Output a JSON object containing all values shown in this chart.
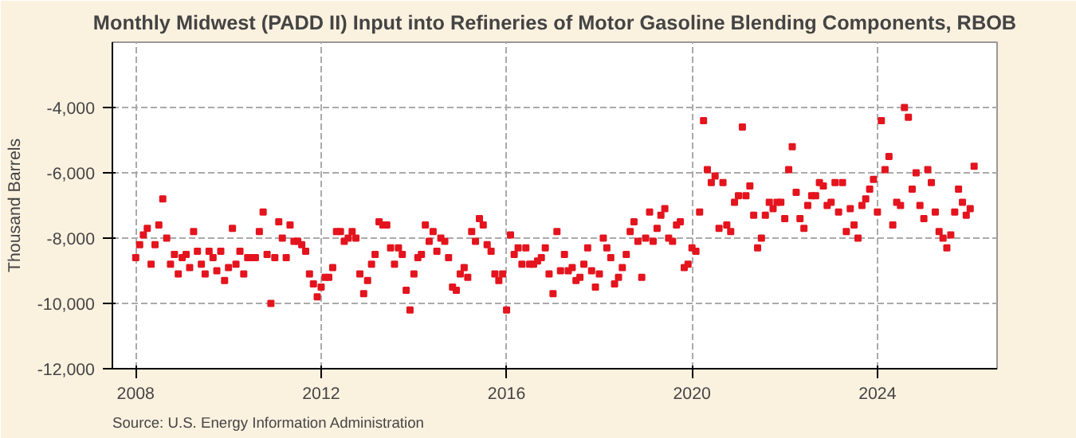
{
  "chart_data": {
    "type": "scatter",
    "title": "Monthly Midwest (PADD II) Input into Refineries of Motor Gasoline Blending Components, RBOB",
    "ylabel": "Thousand Barrels",
    "annotations": [
      "Source: U.S. Energy Information Administration"
    ],
    "marker": "square",
    "grid": true,
    "xlim": [
      "2007-07",
      "2026-08"
    ],
    "xticks": [
      "2008",
      "2012",
      "2016",
      "2020",
      "2024"
    ],
    "ylim": [
      -12000,
      -2000
    ],
    "yticks": [
      {
        "value": -12000,
        "label": "-12,000"
      },
      {
        "value": -10000,
        "label": "-10,000"
      },
      {
        "value": -8000,
        "label": "-8,000"
      },
      {
        "value": -6000,
        "label": "-6,000"
      },
      {
        "value": -4000,
        "label": "-4,000"
      }
    ],
    "x": [
      "2008-01",
      "2008-02",
      "2008-03",
      "2008-04",
      "2008-05",
      "2008-06",
      "2008-07",
      "2008-08",
      "2008-09",
      "2008-10",
      "2008-11",
      "2008-12",
      "2009-01",
      "2009-02",
      "2009-03",
      "2009-04",
      "2009-05",
      "2009-06",
      "2009-07",
      "2009-08",
      "2009-09",
      "2009-10",
      "2009-11",
      "2009-12",
      "2010-01",
      "2010-02",
      "2010-03",
      "2010-04",
      "2010-05",
      "2010-06",
      "2010-07",
      "2010-08",
      "2010-09",
      "2010-10",
      "2010-11",
      "2010-12",
      "2011-01",
      "2011-02",
      "2011-03",
      "2011-04",
      "2011-05",
      "2011-06",
      "2011-07",
      "2011-08",
      "2011-09",
      "2011-10",
      "2011-11",
      "2011-12",
      "2012-01",
      "2012-02",
      "2012-03",
      "2012-04",
      "2012-05",
      "2012-06",
      "2012-07",
      "2012-08",
      "2012-09",
      "2012-10",
      "2012-11",
      "2012-12",
      "2013-01",
      "2013-02",
      "2013-03",
      "2013-04",
      "2013-05",
      "2013-06",
      "2013-07",
      "2013-08",
      "2013-09",
      "2013-10",
      "2013-11",
      "2013-12",
      "2014-01",
      "2014-02",
      "2014-03",
      "2014-04",
      "2014-05",
      "2014-06",
      "2014-07",
      "2014-08",
      "2014-09",
      "2014-10",
      "2014-11",
      "2014-12",
      "2015-01",
      "2015-02",
      "2015-03",
      "2015-04",
      "2015-05",
      "2015-06",
      "2015-07",
      "2015-08",
      "2015-09",
      "2015-10",
      "2015-11",
      "2015-12",
      "2016-01",
      "2016-02",
      "2016-03",
      "2016-04",
      "2016-05",
      "2016-06",
      "2016-07",
      "2016-08",
      "2016-09",
      "2016-10",
      "2016-11",
      "2016-12",
      "2017-01",
      "2017-02",
      "2017-03",
      "2017-04",
      "2017-05",
      "2017-06",
      "2017-07",
      "2017-08",
      "2017-09",
      "2017-10",
      "2017-11",
      "2017-12",
      "2018-01",
      "2018-02",
      "2018-03",
      "2018-04",
      "2018-05",
      "2018-06",
      "2018-07",
      "2018-08",
      "2018-09",
      "2018-10",
      "2018-11",
      "2018-12",
      "2019-01",
      "2019-02",
      "2019-03",
      "2019-04",
      "2019-05",
      "2019-06",
      "2019-07",
      "2019-08",
      "2019-09",
      "2019-10",
      "2019-11",
      "2019-12",
      "2020-01",
      "2020-02",
      "2020-03",
      "2020-04",
      "2020-05",
      "2020-06",
      "2020-07",
      "2020-08",
      "2020-09",
      "2020-10",
      "2020-11",
      "2020-12",
      "2021-01",
      "2021-02",
      "2021-03",
      "2021-04",
      "2021-05",
      "2021-06",
      "2021-07",
      "2021-08",
      "2021-09",
      "2021-10",
      "2021-11",
      "2021-12",
      "2022-01",
      "2022-02",
      "2022-03",
      "2022-04",
      "2022-05",
      "2022-06",
      "2022-07",
      "2022-08",
      "2022-09",
      "2022-10",
      "2022-11",
      "2022-12",
      "2023-01",
      "2023-02",
      "2023-03",
      "2023-04",
      "2023-05",
      "2023-06",
      "2023-07",
      "2023-08",
      "2023-09",
      "2023-10",
      "2023-11",
      "2023-12",
      "2024-01",
      "2024-02",
      "2024-03",
      "2024-04",
      "2024-05",
      "2024-06",
      "2024-07",
      "2024-08",
      "2024-09",
      "2024-10",
      "2024-11",
      "2024-12",
      "2025-01",
      "2025-02",
      "2025-03",
      "2025-04",
      "2025-05",
      "2025-06",
      "2025-07",
      "2025-08",
      "2025-09",
      "2025-10",
      "2025-11",
      "2025-12",
      "2026-01",
      "2026-02"
    ],
    "series": [
      {
        "color": "#e4141e",
        "values": [
          -8600,
          -8200,
          -7900,
          -7700,
          -8800,
          -8200,
          -7600,
          -6800,
          -8000,
          -8800,
          -8500,
          -9100,
          -8600,
          -8500,
          -8900,
          -7800,
          -8400,
          -8800,
          -9100,
          -8400,
          -8600,
          -9000,
          -8400,
          -9300,
          -8900,
          -7700,
          -8800,
          -8400,
          -9100,
          -8600,
          -8600,
          -8600,
          -7800,
          -7200,
          -8500,
          -10000,
          -8600,
          -7500,
          -8000,
          -8600,
          -7600,
          -8100,
          -8100,
          -8200,
          -8400,
          -9100,
          -9400,
          -9800,
          -9500,
          -9200,
          -9200,
          -8900,
          -7800,
          -7800,
          -8100,
          -8000,
          -7800,
          -8000,
          -9100,
          -9700,
          -9300,
          -8800,
          -8500,
          -7500,
          -7600,
          -7600,
          -8300,
          -8800,
          -8300,
          -8500,
          -9600,
          -10200,
          -9100,
          -8600,
          -8500,
          -7600,
          -8100,
          -7800,
          -8400,
          -8000,
          -8100,
          -8600,
          -9500,
          -9600,
          -9100,
          -8900,
          -9200,
          -7800,
          -8100,
          -7400,
          -7600,
          -8200,
          -8400,
          -9100,
          -9300,
          -9100,
          -10200,
          -7900,
          -8500,
          -8300,
          -8800,
          -8300,
          -8800,
          -8800,
          -8700,
          -8600,
          -8300,
          -9100,
          -9700,
          -7800,
          -9000,
          -8500,
          -9000,
          -8900,
          -9300,
          -9200,
          -8800,
          -8300,
          -9000,
          -9500,
          -9100,
          -8000,
          -8300,
          -8600,
          -9400,
          -9200,
          -8900,
          -8500,
          -7800,
          -7500,
          -8100,
          -9200,
          -8000,
          -7200,
          -8100,
          -7700,
          -7300,
          -7100,
          -8000,
          -8100,
          -7600,
          -7500,
          -8900,
          -8800,
          -8300,
          -8400,
          -7200,
          -4400,
          -5900,
          -6300,
          -6100,
          -7700,
          -6300,
          -7600,
          -7800,
          -6900,
          -6700,
          -4600,
          -6700,
          -6400,
          -7300,
          -8300,
          -8000,
          -7300,
          -6900,
          -7100,
          -6900,
          -6900,
          -7400,
          -5900,
          -5200,
          -6600,
          -7400,
          -7700,
          -7000,
          -6700,
          -6700,
          -6300,
          -6400,
          -7000,
          -6900,
          -6300,
          -7200,
          -6300,
          -7800,
          -7100,
          -7600,
          -8000,
          -7000,
          -6800,
          -6500,
          -6200,
          -7200,
          -4400,
          -5900,
          -5500,
          -7600,
          -6900,
          -7000,
          -4000,
          -4300,
          -6500,
          -6000,
          -7000,
          -7400,
          -5900,
          -6300,
          -7200,
          -7800,
          -8000,
          -8300,
          -7900,
          -7200,
          -6500,
          -6900,
          -7300,
          -7100,
          -5800
        ]
      }
    ]
  }
}
